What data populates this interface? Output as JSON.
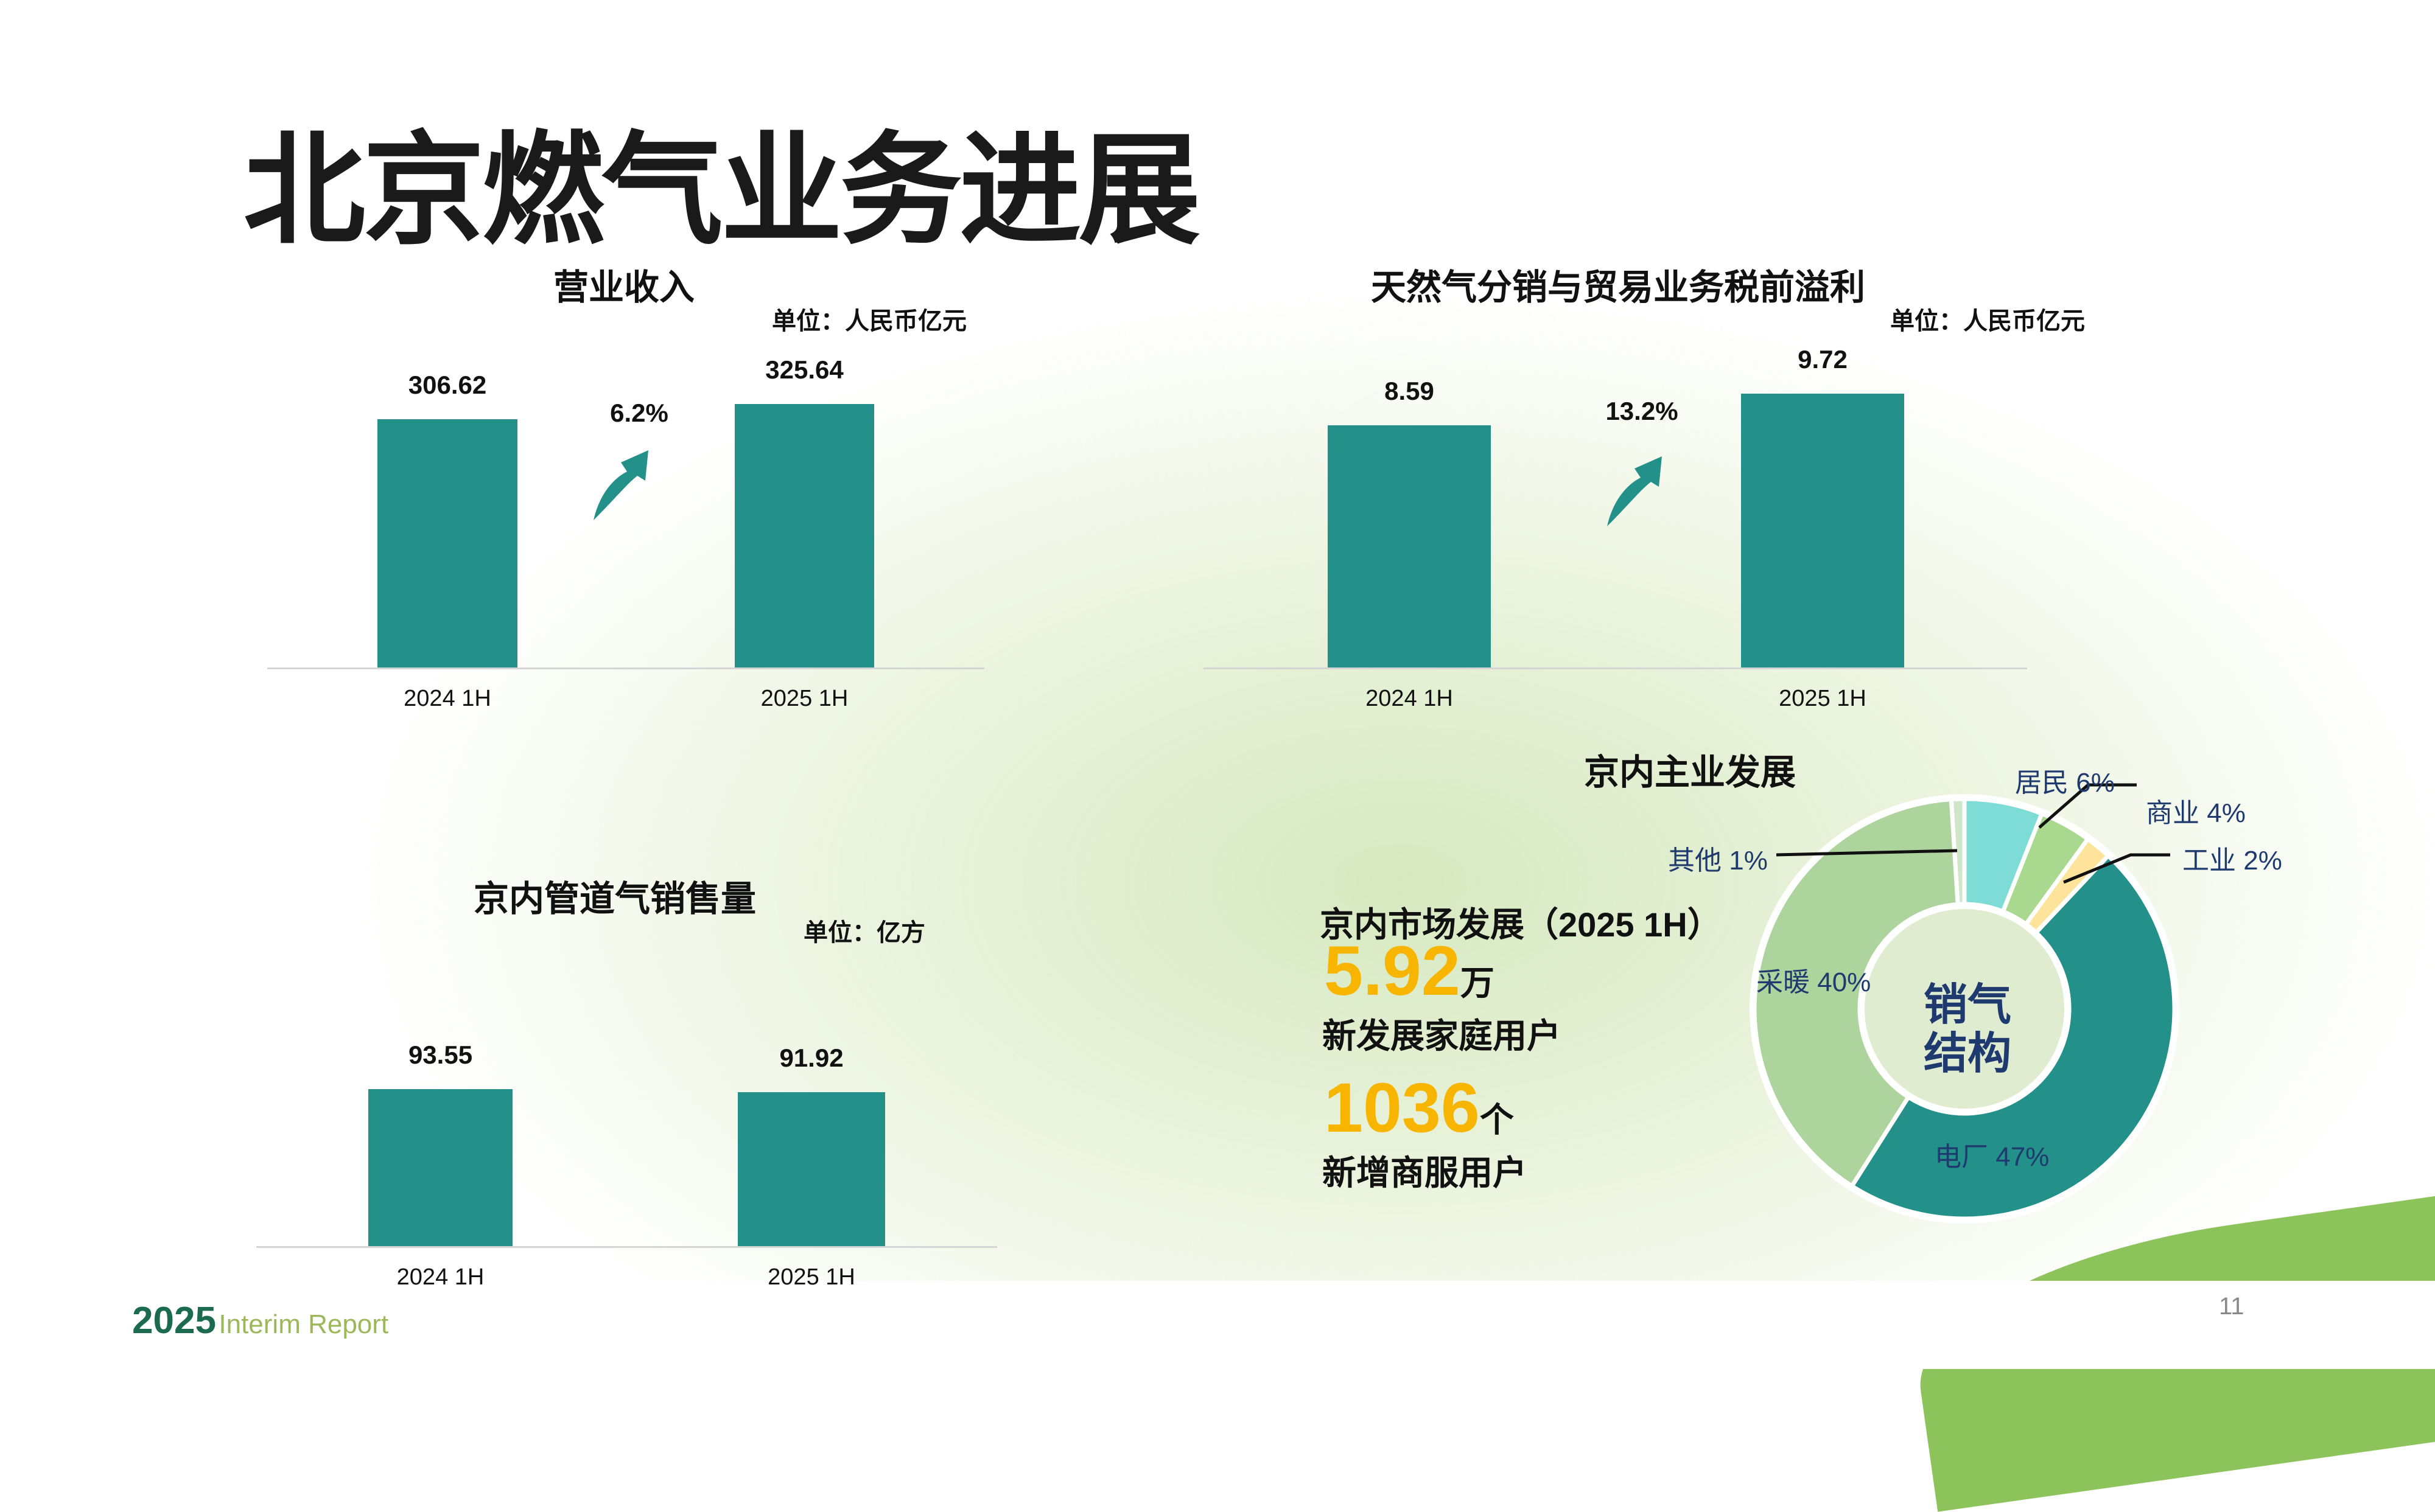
{
  "page_title": "北京燃气业务进展",
  "page_number": "11",
  "footer": {
    "year": "2025",
    "text": "Interim Report"
  },
  "chart_data": [
    {
      "type": "bar",
      "title": "营业收入",
      "unit": "单位：人民币亿元",
      "categories": [
        "2024 1H",
        "2025 1H"
      ],
      "values": [
        306.62,
        325.64
      ],
      "value_labels": [
        "306.62",
        "325.64"
      ],
      "growth": "6.2%",
      "bar_color": "#23918a"
    },
    {
      "type": "bar",
      "title": "天然气分销与贸易业务税前溢利",
      "unit": "单位：人民币亿元",
      "categories": [
        "2024 1H",
        "2025 1H"
      ],
      "values": [
        8.59,
        9.72
      ],
      "value_labels": [
        "8.59",
        "9.72"
      ],
      "growth": "13.2%",
      "bar_color": "#23918a"
    },
    {
      "type": "bar",
      "title": "京内管道气销售量",
      "unit": "单位：亿方",
      "categories": [
        "2024 1H",
        "2025 1H"
      ],
      "values": [
        93.55,
        91.92
      ],
      "value_labels": [
        "93.55",
        "91.92"
      ],
      "bar_color": "#23918a"
    },
    {
      "type": "pie",
      "title": "京内主业发展",
      "center_label": [
        "销气",
        "结构"
      ],
      "slices": [
        {
          "name": "居民",
          "value": 6,
          "label": "居民 6%",
          "color": "#7ddcd6"
        },
        {
          "name": "商业",
          "value": 4,
          "label": "商业 4%",
          "color": "#a9d98f"
        },
        {
          "name": "工业",
          "value": 2,
          "label": "工业 2%",
          "color": "#fde49a"
        },
        {
          "name": "电厂",
          "value": 47,
          "label": "电厂 47%",
          "color": "#23918a"
        },
        {
          "name": "采暖",
          "value": 40,
          "label": "采暖 40%",
          "color": "#acd49c"
        },
        {
          "name": "其他",
          "value": 1,
          "label": "其他 1%",
          "color": "#cfe6c8"
        }
      ]
    }
  ],
  "market": {
    "heading": "京内市场发展（2025 1H）",
    "households_value": "5.92",
    "households_unit": "万",
    "households_label": "新发展家庭用户",
    "commercial_value": "1036",
    "commercial_unit": "个",
    "commercial_label": "新增商服用户"
  },
  "colors": {
    "accent": "#23918a",
    "highlight": "#f7b500",
    "label_blue": "#1f3a6e"
  }
}
